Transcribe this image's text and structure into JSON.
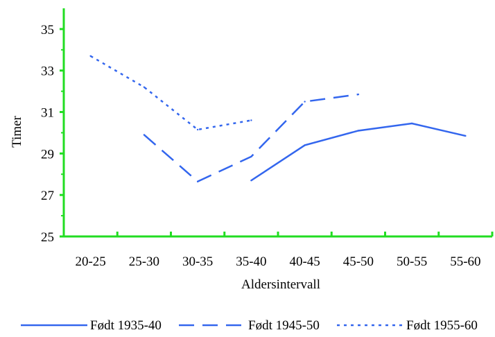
{
  "chart_data": {
    "type": "line",
    "title": "",
    "xlabel": "Aldersintervall",
    "ylabel": "Timer",
    "ylim": [
      25,
      36
    ],
    "yticks": [
      25,
      27,
      29,
      31,
      33,
      35
    ],
    "categories": [
      "20-25",
      "25-30",
      "30-35",
      "35-40",
      "40-45",
      "45-50",
      "50-55",
      "55-60"
    ],
    "grid": false,
    "legend_position": "bottom",
    "axis_color": "#22dd22",
    "line_color": "#3366ee",
    "series": [
      {
        "name": "Født 1935-40",
        "dash": "solid",
        "values": [
          null,
          null,
          null,
          27.7,
          29.4,
          30.1,
          30.45,
          29.85
        ]
      },
      {
        "name": "Født 1945-50",
        "dash": "dashed",
        "values": [
          null,
          29.9,
          27.65,
          28.85,
          31.5,
          31.85,
          null,
          null
        ]
      },
      {
        "name": "Født 1955-60",
        "dash": "dotted",
        "values": [
          33.7,
          32.2,
          30.15,
          30.6,
          null,
          null,
          null,
          null
        ]
      }
    ]
  }
}
